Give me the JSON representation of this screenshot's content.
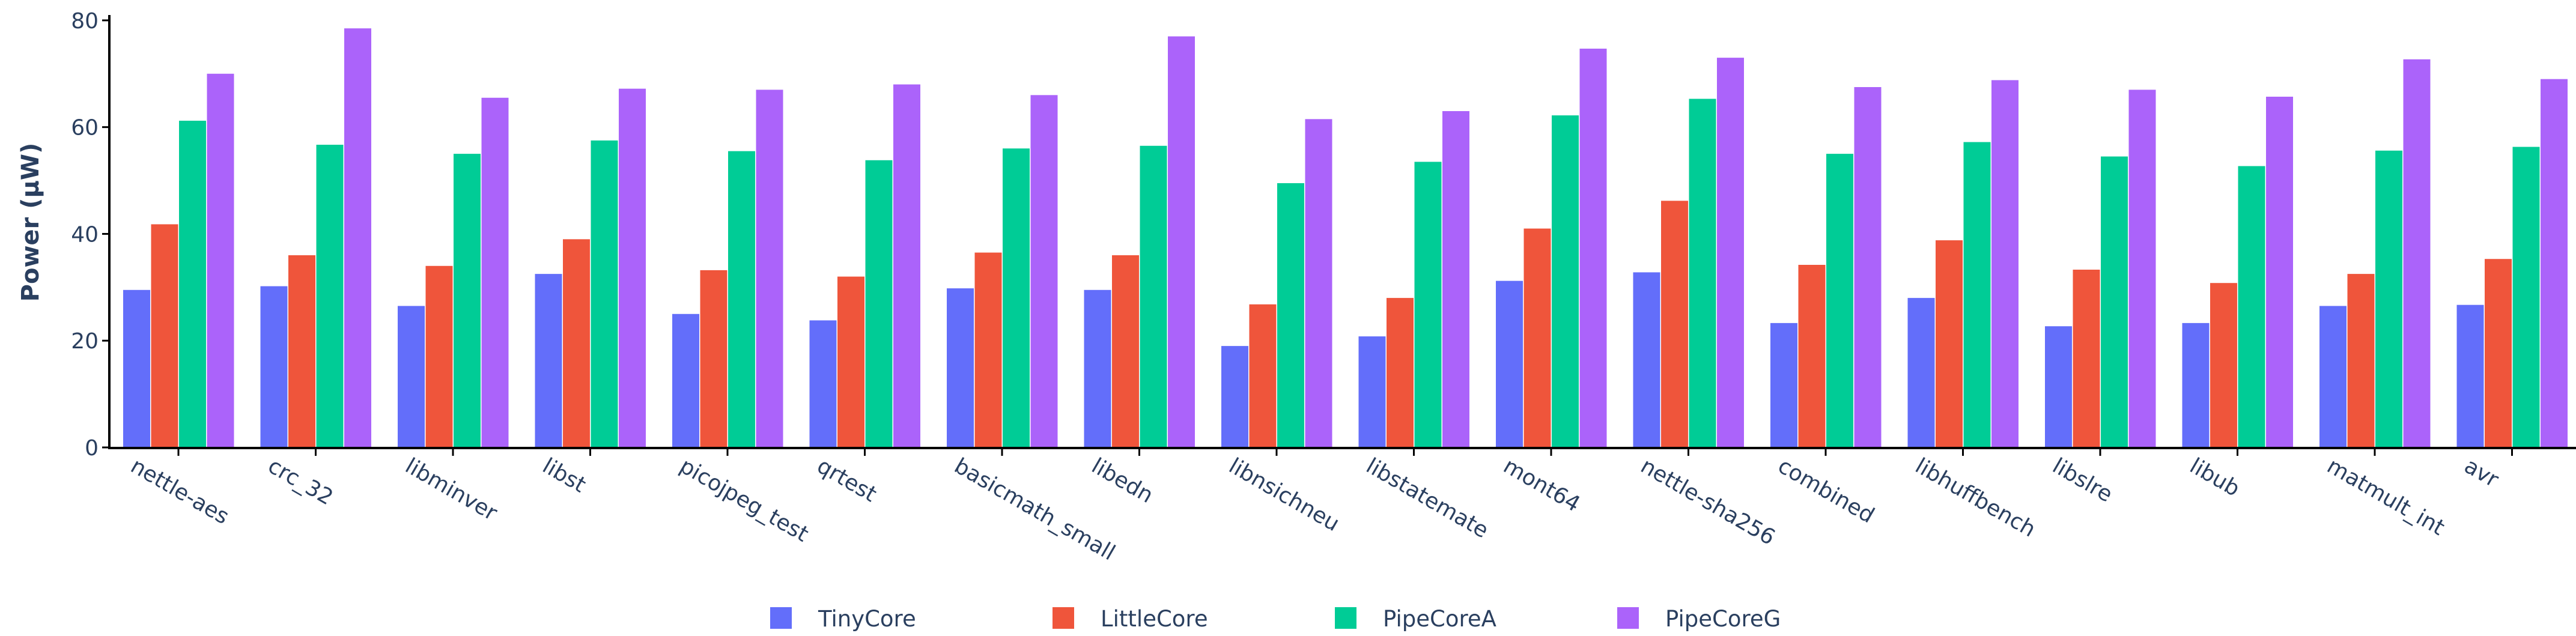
{
  "chart_data": {
    "type": "bar",
    "title": "",
    "xlabel": "",
    "ylabel": "Power (μW)",
    "ylim": [
      0,
      81
    ],
    "yticks": [
      0,
      20,
      40,
      60,
      80
    ],
    "grid": false,
    "legend_position": "bottom-center",
    "categories": [
      "nettle-aes",
      "crc_32",
      "libminver",
      "libst",
      "picojpeg_test",
      "qrtest",
      "basicmath_small",
      "libedn",
      "libnsichneu",
      "libstatemate",
      "mont64",
      "nettle-sha256",
      "combined",
      "libhuffbench",
      "libslre",
      "libub",
      "matmult_int",
      "avr"
    ],
    "series": [
      {
        "name": "TinyCore",
        "color": "#636efa",
        "values": [
          29.5,
          30.2,
          26.5,
          32.5,
          25.0,
          23.8,
          29.8,
          29.5,
          19.0,
          20.8,
          31.2,
          32.8,
          23.3,
          28.0,
          22.7,
          23.3,
          26.5,
          26.7
        ]
      },
      {
        "name": "LittleCore",
        "color": "#ef553b",
        "values": [
          41.8,
          36.0,
          34.0,
          39.0,
          33.2,
          32.0,
          36.5,
          36.0,
          26.8,
          28.0,
          41.0,
          46.2,
          34.2,
          38.8,
          33.3,
          30.8,
          32.5,
          35.3
        ]
      },
      {
        "name": "PipeCoreA",
        "color": "#00cc96",
        "values": [
          61.2,
          56.7,
          55.0,
          57.5,
          55.5,
          53.8,
          56.0,
          56.5,
          49.5,
          53.5,
          62.2,
          65.3,
          55.0,
          57.2,
          54.5,
          52.7,
          55.6,
          56.3
        ]
      },
      {
        "name": "PipeCoreG",
        "color": "#ab63fa",
        "values": [
          70.0,
          78.5,
          65.5,
          67.2,
          67.0,
          68.0,
          66.0,
          77.0,
          61.5,
          63.0,
          74.7,
          73.0,
          67.5,
          68.8,
          67.0,
          65.7,
          72.7,
          69.0
        ]
      }
    ]
  }
}
